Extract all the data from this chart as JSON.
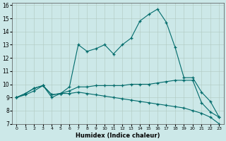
{
  "xlabel": "Humidex (Indice chaleur)",
  "bg_color": "#cce8e8",
  "grid_color": "#b8c8c8",
  "line_color": "#006b6b",
  "xlim": [
    -0.5,
    23.5
  ],
  "ylim": [
    7,
    16.2
  ],
  "xticks": [
    0,
    1,
    2,
    3,
    4,
    5,
    6,
    7,
    8,
    9,
    10,
    11,
    12,
    13,
    14,
    15,
    16,
    17,
    18,
    19,
    20,
    21,
    22,
    23
  ],
  "yticks": [
    7,
    8,
    9,
    10,
    11,
    12,
    13,
    14,
    15,
    16
  ],
  "curves": [
    {
      "x": [
        0,
        1,
        2,
        3,
        4,
        5,
        6,
        7,
        8,
        9,
        10,
        11,
        12,
        13,
        14,
        15,
        16,
        17,
        18,
        19,
        20,
        21,
        22,
        23
      ],
      "y": [
        9.0,
        9.3,
        9.7,
        9.9,
        9.2,
        9.3,
        9.8,
        13.0,
        12.5,
        12.7,
        13.0,
        12.3,
        13.0,
        13.5,
        14.8,
        15.3,
        15.7,
        14.7,
        12.8,
        10.5,
        10.5,
        9.4,
        8.7,
        7.5
      ]
    },
    {
      "x": [
        0,
        1,
        2,
        3,
        4,
        5,
        6,
        7,
        8,
        9,
        10,
        11,
        12,
        13,
        14,
        15,
        16,
        17,
        18,
        19,
        20,
        21,
        22,
        23
      ],
      "y": [
        9.0,
        9.3,
        9.7,
        9.9,
        9.2,
        9.3,
        9.5,
        9.8,
        9.8,
        9.9,
        9.9,
        9.9,
        9.9,
        10.0,
        10.0,
        10.0,
        10.1,
        10.2,
        10.3,
        10.3,
        10.3,
        8.6,
        7.9,
        7.5
      ]
    },
    {
      "x": [
        0,
        1,
        2,
        3,
        4,
        5,
        6,
        7,
        8,
        9,
        10,
        11,
        12,
        13,
        14,
        15,
        16,
        17,
        18,
        19,
        20,
        21,
        22,
        23
      ],
      "y": [
        9.0,
        9.2,
        9.5,
        9.9,
        9.0,
        9.3,
        9.3,
        9.4,
        9.3,
        9.2,
        9.1,
        9.0,
        8.9,
        8.8,
        8.7,
        8.6,
        8.5,
        8.4,
        8.3,
        8.2,
        8.0,
        7.8,
        7.5,
        7.0
      ]
    }
  ]
}
